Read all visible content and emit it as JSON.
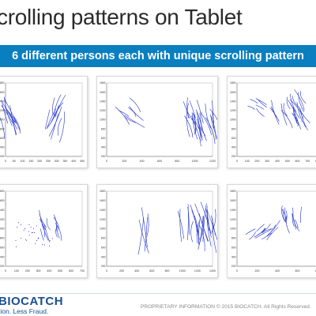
{
  "slide": {
    "title": "crolling patterns on Tablet",
    "subtitle": "6 different persons each with unique scrolling pattern"
  },
  "panels": [
    {
      "xticks": [
        "0",
        "50",
        "100",
        "150",
        "200",
        "250",
        "300",
        "350",
        "400",
        "450"
      ],
      "yticks": [
        "1800",
        "1600",
        "1400",
        "1200",
        "1000",
        "800",
        "600",
        "400",
        "200"
      ],
      "stroke_color": "#2233cc"
    },
    {
      "xticks": [
        "0",
        "200",
        "400",
        "600",
        "800",
        "1000",
        "1200"
      ],
      "yticks": [
        "1800",
        "1600",
        "1400",
        "1200",
        "1000",
        "800",
        "600",
        "400",
        "200"
      ],
      "stroke_color": "#2233cc"
    },
    {
      "xticks": [
        "0",
        "100",
        "200",
        "300",
        "400",
        "500",
        "600",
        "700",
        "800"
      ],
      "yticks": [
        "1800",
        "1600",
        "1400",
        "1200",
        "1000",
        "800",
        "600",
        "400",
        "200"
      ],
      "stroke_color": "#2233cc"
    },
    {
      "xticks": [
        "0",
        "100",
        "200",
        "300",
        "400",
        "500",
        "600",
        "700"
      ],
      "yticks": [
        "1800",
        "1600",
        "1400",
        "1200",
        "1000",
        "800",
        "600",
        "400",
        "200"
      ],
      "stroke_color": "#2233cc"
    },
    {
      "xticks": [
        "0",
        "200",
        "400",
        "600",
        "800",
        "1000",
        "1200",
        "1400"
      ],
      "yticks": [
        "1800",
        "1600",
        "1400",
        "1200",
        "1000",
        "800",
        "600",
        "400",
        "200"
      ],
      "stroke_color": "#2233cc"
    },
    {
      "xticks": [
        "0",
        "200",
        "400",
        "600",
        "800"
      ],
      "yticks": [
        "1800",
        "1600",
        "1400",
        "1200",
        "1000",
        "800",
        "600",
        "400",
        "200"
      ],
      "stroke_color": "#2233cc"
    }
  ],
  "footer": {
    "logo_text": "BIOCATCH",
    "tagline": "tion. Less Fraud.",
    "proprietary": "PROPRIETARY INFORMATION © 2015 BIOCATCH. All Rights Reserved.",
    "brand_color": "#1b4f8f"
  }
}
